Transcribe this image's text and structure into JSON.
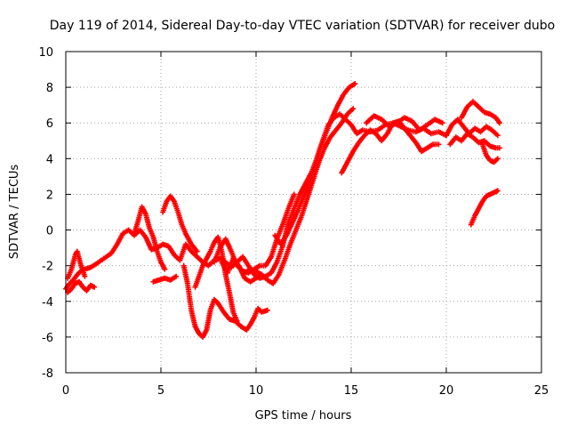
{
  "chart_data": {
    "type": "scatter",
    "title": "Day 119 of 2014, Sidereal Day-to-day VTEC variation (SDTVAR) for receiver dubo",
    "xlabel": "GPS time / hours",
    "ylabel": "SDTVAR / TECUs",
    "xlim": [
      0,
      25
    ],
    "ylim": [
      -8,
      10
    ],
    "xticks": [
      "0",
      "5",
      "10",
      "15",
      "20",
      "25"
    ],
    "yticks": [
      "-8",
      "-6",
      "-4",
      "-2",
      "0",
      "2",
      "4",
      "6",
      "8",
      "10"
    ],
    "grid": true,
    "legend": "none",
    "marker": "plus",
    "color": "#ff0000",
    "series": [
      {
        "x": [
          0.0,
          0.2,
          0.4,
          0.6,
          0.8,
          1.0,
          1.3,
          1.6,
          2.0,
          2.4,
          2.7,
          3.0,
          3.3,
          3.6,
          3.9,
          4.2,
          4.5,
          4.8,
          5.1,
          5.4,
          5.7,
          6.0,
          6.3,
          6.6,
          6.9,
          7.2,
          7.5,
          7.8,
          8.1,
          8.4,
          8.7,
          9.0,
          9.3,
          9.6,
          9.9,
          10.2,
          10.5,
          10.8,
          11.1,
          11.4,
          11.7,
          12.0,
          12.3,
          12.6,
          12.9,
          13.2,
          13.5,
          13.8,
          14.1,
          14.4,
          14.7,
          15.0,
          15.3,
          15.6,
          16.0,
          16.4,
          16.8,
          17.2,
          17.6,
          18.0,
          18.4,
          18.8,
          19.2,
          19.6,
          20.0
        ],
        "y": [
          -3.3,
          -3.0,
          -2.8,
          -2.5,
          -2.3,
          -2.2,
          -2.1,
          -1.9,
          -1.6,
          -1.3,
          -0.8,
          -0.2,
          0.0,
          -0.3,
          0.0,
          -0.4,
          -1.1,
          -1.0,
          -0.8,
          -0.9,
          -1.4,
          -1.7,
          -0.8,
          -1.2,
          -1.5,
          -1.8,
          -2.0,
          -1.7,
          -1.6,
          -1.8,
          -2.1,
          -1.8,
          -1.5,
          -2.0,
          -2.5,
          -2.7,
          -2.6,
          -2.4,
          -1.8,
          -0.9,
          0.4,
          1.2,
          2.0,
          2.6,
          3.2,
          4.0,
          5.0,
          5.9,
          6.3,
          6.5,
          6.2,
          5.9,
          5.4,
          5.6,
          5.5,
          5.6,
          5.9,
          6.0,
          5.8,
          5.6,
          5.5,
          5.7,
          5.4,
          5.5,
          5.3
        ]
      },
      {
        "x": [
          0.1,
          0.3,
          0.5,
          0.7,
          0.9,
          1.1,
          1.3,
          1.5
        ],
        "y": [
          -3.5,
          -3.3,
          -3.0,
          -2.9,
          -3.2,
          -3.4,
          -3.1,
          -3.2
        ]
      },
      {
        "x": [
          0.1,
          0.3,
          0.5,
          0.6,
          0.8,
          1.0
        ],
        "y": [
          -2.7,
          -2.2,
          -1.4,
          -1.2,
          -2.0,
          -2.6
        ]
      },
      {
        "x": [
          3.6,
          3.8,
          4.0,
          4.2,
          4.4,
          4.6,
          4.8,
          5.0,
          5.2
        ],
        "y": [
          -0.2,
          0.5,
          1.3,
          0.9,
          0.1,
          -0.4,
          -1.2,
          -1.8,
          -2.2
        ]
      },
      {
        "x": [
          4.6,
          4.9,
          5.2,
          5.5,
          5.8
        ],
        "y": [
          -2.9,
          -2.8,
          -2.7,
          -2.8,
          -2.6
        ]
      },
      {
        "x": [
          5.1,
          5.3,
          5.5,
          5.7,
          5.9,
          6.1,
          6.3,
          6.6,
          6.9
        ],
        "y": [
          1.0,
          1.6,
          1.9,
          1.6,
          1.0,
          0.3,
          -0.2,
          -0.8,
          -1.2
        ]
      },
      {
        "x": [
          6.2,
          6.4,
          6.6,
          6.8,
          7.0,
          7.2,
          7.4,
          7.6,
          7.8,
          8.0,
          8.3,
          8.6,
          8.9,
          9.2,
          9.5,
          9.7,
          9.9,
          10.1,
          10.3,
          10.6
        ],
        "y": [
          -2.0,
          -3.0,
          -4.5,
          -5.4,
          -5.8,
          -6.0,
          -5.6,
          -4.5,
          -3.9,
          -4.1,
          -4.6,
          -5.0,
          -5.1,
          -5.4,
          -5.6,
          -5.3,
          -4.9,
          -4.4,
          -4.6,
          -4.5
        ]
      },
      {
        "x": [
          6.8,
          7.0,
          7.2,
          7.4,
          7.6,
          7.8,
          8.0,
          8.2,
          8.4,
          8.6,
          8.8,
          9.0
        ],
        "y": [
          -3.2,
          -2.6,
          -2.0,
          -1.6,
          -1.2,
          -0.7,
          -0.4,
          -1.2,
          -2.5,
          -3.5,
          -4.6,
          -5.1
        ]
      },
      {
        "x": [
          7.8,
          8.1,
          8.4,
          8.7,
          9.0,
          9.3,
          9.6,
          9.9,
          10.2,
          10.5,
          10.8,
          11.1,
          11.4,
          11.7,
          12.0
        ],
        "y": [
          -1.8,
          -1.0,
          -0.5,
          -1.2,
          -2.0,
          -2.3,
          -2.4,
          -2.2,
          -2.0,
          -2.0,
          -1.5,
          -0.5,
          0.3,
          1.2,
          2.0
        ]
      },
      {
        "x": [
          8.2,
          8.5,
          8.8,
          9.1,
          9.4,
          9.7,
          10.0,
          10.3
        ],
        "y": [
          -1.8,
          -2.4,
          -1.6,
          -2.0,
          -2.7,
          -2.9,
          -2.7,
          -2.5
        ]
      },
      {
        "x": [
          9.4,
          9.7,
          10.0,
          10.3,
          10.6,
          10.9,
          11.2,
          11.5,
          11.8,
          12.1,
          12.4,
          12.7,
          13.0,
          13.3,
          13.6,
          13.9,
          14.2,
          14.5,
          14.8,
          15.1
        ],
        "y": [
          -2.4,
          -2.2,
          -2.3,
          -2.5,
          -2.8,
          -3.0,
          -2.5,
          -1.7,
          -0.8,
          0.0,
          0.8,
          1.8,
          2.8,
          3.8,
          4.6,
          5.2,
          5.6,
          6.0,
          6.5,
          6.8
        ]
      },
      {
        "x": [
          11.0,
          11.3,
          11.6,
          11.9,
          12.2,
          12.5,
          12.8,
          13.1,
          13.4,
          13.7,
          14.0,
          14.3,
          14.6,
          14.9,
          15.2
        ],
        "y": [
          -0.3,
          -0.8,
          -0.3,
          0.4,
          1.1,
          1.9,
          2.6,
          3.7,
          4.7,
          5.5,
          6.3,
          7.0,
          7.6,
          8.0,
          8.2
        ]
      },
      {
        "x": [
          14.5,
          14.8,
          15.1,
          15.4,
          15.7,
          16.0,
          16.3,
          16.6,
          16.9,
          17.2,
          17.5,
          17.8,
          18.1,
          18.4,
          18.7,
          19.0,
          19.3,
          19.6
        ],
        "y": [
          3.2,
          3.8,
          4.4,
          4.9,
          5.3,
          5.6,
          5.4,
          5.0,
          5.4,
          6.0,
          6.1,
          5.7,
          5.3,
          4.9,
          4.4,
          4.6,
          4.8,
          4.8
        ]
      },
      {
        "x": [
          15.8,
          16.2,
          16.6,
          17.0,
          17.4,
          17.8,
          18.2,
          18.6,
          19.0,
          19.4,
          19.8
        ],
        "y": [
          6.0,
          6.4,
          6.2,
          5.8,
          6.0,
          6.3,
          6.1,
          5.6,
          5.9,
          6.2,
          6.0
        ]
      },
      {
        "x": [
          20.0,
          20.3,
          20.6,
          20.9,
          21.2,
          21.5,
          21.8,
          22.1,
          22.4,
          22.7
        ],
        "y": [
          5.3,
          5.9,
          6.2,
          5.8,
          5.4,
          5.7,
          5.5,
          5.8,
          5.6,
          5.3
        ]
      },
      {
        "x": [
          20.2,
          20.5,
          20.8,
          21.1,
          21.4,
          21.7,
          22.0,
          22.3,
          22.6,
          22.8
        ],
        "y": [
          4.8,
          5.2,
          5.0,
          5.4,
          5.2,
          4.9,
          5.0,
          4.7,
          4.6,
          4.6
        ]
      },
      {
        "x": [
          20.8,
          21.1,
          21.4,
          21.7,
          22.0,
          22.3,
          22.6,
          22.8
        ],
        "y": [
          6.3,
          6.9,
          7.2,
          6.9,
          6.6,
          6.5,
          6.3,
          6.0
        ]
      },
      {
        "x": [
          21.9,
          22.1,
          22.3,
          22.5,
          22.7
        ],
        "y": [
          4.8,
          4.2,
          3.9,
          3.8,
          4.0
        ]
      },
      {
        "x": [
          21.3,
          21.5,
          21.7,
          21.9,
          22.1,
          22.3,
          22.5,
          22.7
        ],
        "y": [
          0.3,
          0.8,
          1.2,
          1.6,
          1.9,
          2.0,
          2.1,
          2.2
        ]
      }
    ]
  }
}
